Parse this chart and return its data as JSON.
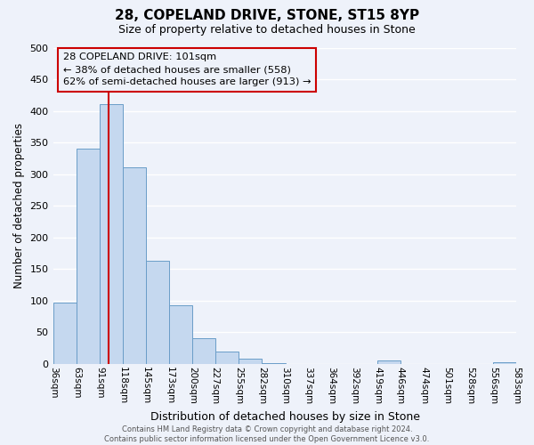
{
  "title": "28, COPELAND DRIVE, STONE, ST15 8YP",
  "subtitle": "Size of property relative to detached houses in Stone",
  "xlabel": "Distribution of detached houses by size in Stone",
  "ylabel": "Number of detached properties",
  "bin_edges": [
    36,
    63,
    91,
    118,
    145,
    173,
    200,
    227,
    255,
    282,
    310,
    337,
    364,
    392,
    419,
    446,
    474,
    501,
    528,
    556,
    583
  ],
  "bar_heights": [
    97,
    341,
    411,
    311,
    163,
    93,
    40,
    19,
    8,
    1,
    0,
    0,
    0,
    0,
    5,
    0,
    0,
    0,
    0,
    3
  ],
  "bar_color": "#c5d8ef",
  "bar_edge_color": "#6a9dc8",
  "property_size": 101,
  "vline_color": "#cc0000",
  "annotation_text": "28 COPELAND DRIVE: 101sqm\n← 38% of detached houses are smaller (558)\n62% of semi-detached houses are larger (913) →",
  "annotation_box_edge_color": "#cc0000",
  "ylim": [
    0,
    500
  ],
  "yticks": [
    0,
    50,
    100,
    150,
    200,
    250,
    300,
    350,
    400,
    450,
    500
  ],
  "tick_labels": [
    "36sqm",
    "63sqm",
    "91sqm",
    "118sqm",
    "145sqm",
    "173sqm",
    "200sqm",
    "227sqm",
    "255sqm",
    "282sqm",
    "310sqm",
    "337sqm",
    "364sqm",
    "392sqm",
    "419sqm",
    "446sqm",
    "474sqm",
    "501sqm",
    "528sqm",
    "556sqm",
    "583sqm"
  ],
  "footer_line1": "Contains HM Land Registry data © Crown copyright and database right 2024.",
  "footer_line2": "Contains public sector information licensed under the Open Government Licence v3.0.",
  "bg_color": "#eef2fa",
  "grid_color": "#ffffff"
}
